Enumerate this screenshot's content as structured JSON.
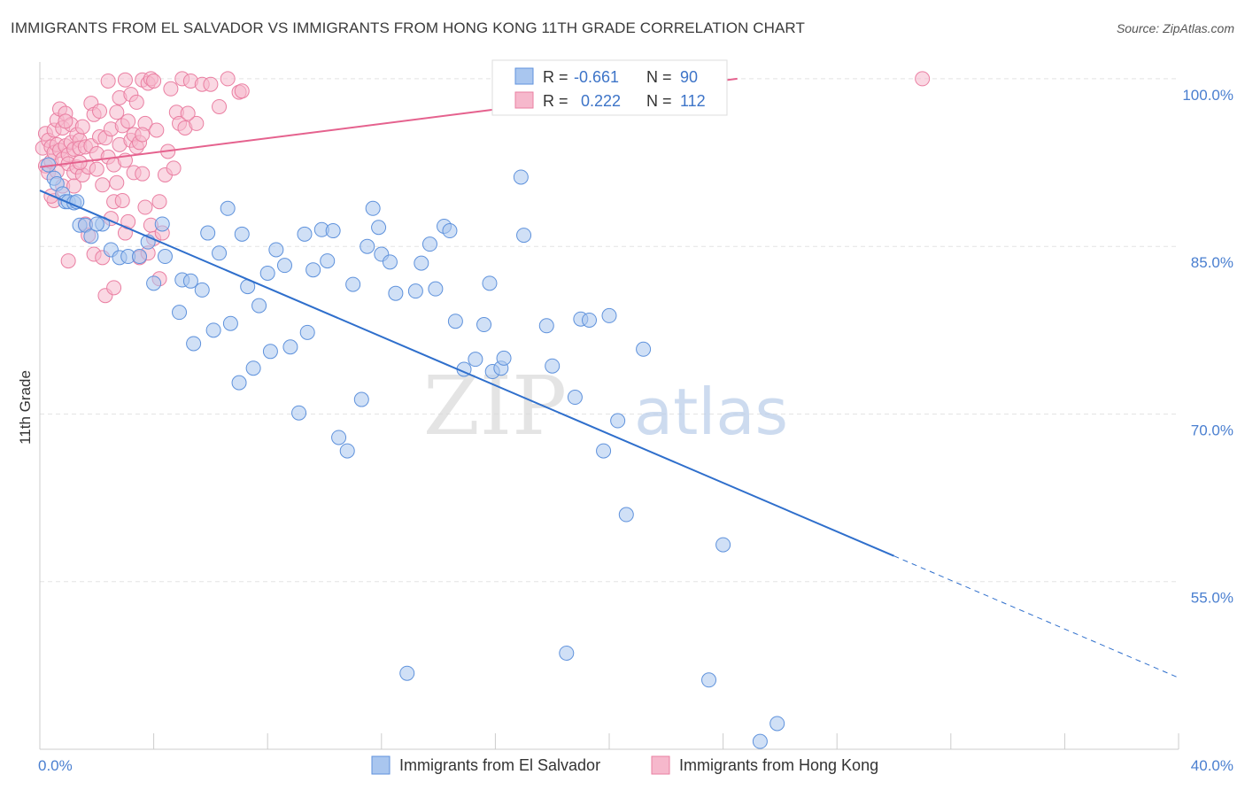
{
  "title": "IMMIGRANTS FROM EL SALVADOR VS IMMIGRANTS FROM HONG KONG 11TH GRADE CORRELATION CHART",
  "source": "Source: ZipAtlas.com",
  "watermark": {
    "zip": "ZIP",
    "atlas": "atlas"
  },
  "colors": {
    "blue_fill": "#a9c6ef",
    "blue_stroke": "#5f92dc",
    "blue_line": "#2f6fcc",
    "pink_fill": "#f6b8cc",
    "pink_stroke": "#ea7fa2",
    "pink_line": "#e5628e",
    "grid": "#e4e4e4",
    "tick_text": "#4a7fd0"
  },
  "legend": {
    "r_label": "R =",
    "n_label": "N =",
    "items": [
      {
        "r": "-0.661",
        "n": "90"
      },
      {
        "r": "0.222",
        "n": "112"
      }
    ]
  },
  "chart_data": {
    "type": "scatter",
    "title": "IMMIGRANTS FROM EL SALVADOR VS IMMIGRANTS FROM HONG KONG 11TH GRADE CORRELATION CHART",
    "xlabel": "",
    "ylabel": "11th Grade",
    "xlim": [
      0,
      40
    ],
    "ylim": [
      40,
      101.5
    ],
    "x_tick_labels": [
      "0.0%",
      "40.0%"
    ],
    "y_ticks": [
      55,
      70,
      85,
      100
    ],
    "y_tick_labels": [
      "55.0%",
      "70.0%",
      "85.0%",
      "100.0%"
    ],
    "grid": true,
    "legend_position": "top-center",
    "series": [
      {
        "name": "Immigrants from El Salvador",
        "r": -0.661,
        "n": 90,
        "trend": {
          "x0": 0,
          "y0": 90.0,
          "x1": 30.0,
          "y1": 57.3,
          "dash_to_x": 40.0,
          "dash_to_y": 46.4
        },
        "points": [
          [
            0.3,
            92.3
          ],
          [
            0.5,
            91.1
          ],
          [
            0.6,
            90.6
          ],
          [
            0.8,
            89.7
          ],
          [
            0.9,
            89.0
          ],
          [
            1.0,
            89.0
          ],
          [
            1.2,
            88.9
          ],
          [
            1.4,
            86.9
          ],
          [
            1.6,
            86.9
          ],
          [
            1.8,
            85.9
          ],
          [
            2.2,
            87.0
          ],
          [
            2.5,
            84.7
          ],
          [
            2.8,
            84.0
          ],
          [
            3.1,
            84.1
          ],
          [
            3.5,
            84.1
          ],
          [
            3.8,
            85.4
          ],
          [
            4.0,
            81.7
          ],
          [
            4.3,
            87.0
          ],
          [
            4.4,
            84.1
          ],
          [
            4.9,
            79.1
          ],
          [
            5.0,
            82.0
          ],
          [
            5.3,
            81.9
          ],
          [
            5.7,
            81.1
          ],
          [
            5.4,
            76.3
          ],
          [
            5.9,
            86.2
          ],
          [
            6.1,
            77.5
          ],
          [
            6.3,
            84.4
          ],
          [
            6.6,
            88.4
          ],
          [
            6.7,
            78.1
          ],
          [
            7.0,
            72.8
          ],
          [
            7.1,
            86.1
          ],
          [
            7.3,
            81.4
          ],
          [
            7.5,
            74.1
          ],
          [
            7.7,
            79.7
          ],
          [
            8.0,
            82.6
          ],
          [
            8.1,
            75.6
          ],
          [
            8.3,
            84.7
          ],
          [
            8.6,
            83.3
          ],
          [
            8.8,
            76.0
          ],
          [
            9.1,
            70.1
          ],
          [
            9.3,
            86.1
          ],
          [
            9.4,
            77.3
          ],
          [
            9.6,
            82.9
          ],
          [
            9.9,
            86.5
          ],
          [
            10.1,
            83.7
          ],
          [
            10.3,
            86.4
          ],
          [
            10.5,
            67.9
          ],
          [
            10.8,
            66.7
          ],
          [
            11.0,
            81.6
          ],
          [
            11.3,
            71.3
          ],
          [
            11.5,
            85.0
          ],
          [
            11.7,
            88.4
          ],
          [
            11.9,
            86.7
          ],
          [
            12.0,
            84.3
          ],
          [
            12.3,
            83.6
          ],
          [
            12.5,
            80.8
          ],
          [
            12.9,
            46.8
          ],
          [
            13.2,
            81.0
          ],
          [
            13.4,
            83.5
          ],
          [
            13.7,
            85.2
          ],
          [
            13.9,
            81.2
          ],
          [
            14.2,
            86.8
          ],
          [
            14.4,
            86.4
          ],
          [
            14.6,
            78.3
          ],
          [
            14.9,
            74.0
          ],
          [
            15.3,
            74.9
          ],
          [
            15.6,
            78.0
          ],
          [
            15.8,
            81.7
          ],
          [
            15.9,
            73.8
          ],
          [
            16.2,
            74.1
          ],
          [
            16.3,
            75.0
          ],
          [
            16.9,
            91.2
          ],
          [
            17.0,
            86.0
          ],
          [
            17.8,
            77.9
          ],
          [
            18.0,
            74.3
          ],
          [
            18.5,
            48.6
          ],
          [
            18.8,
            71.5
          ],
          [
            19.0,
            78.5
          ],
          [
            19.3,
            78.4
          ],
          [
            19.8,
            66.7
          ],
          [
            20.0,
            78.8
          ],
          [
            20.3,
            69.4
          ],
          [
            20.6,
            61.0
          ],
          [
            21.2,
            75.8
          ],
          [
            23.5,
            46.2
          ],
          [
            24.0,
            58.3
          ],
          [
            25.3,
            40.7
          ],
          [
            25.9,
            42.3
          ],
          [
            2.0,
            87.0
          ],
          [
            1.3,
            89.0
          ]
        ]
      },
      {
        "name": "Immigrants from Hong Kong",
        "r": 0.222,
        "n": 112,
        "trend": {
          "x0": 0,
          "y0": 92.1,
          "x1": 24.5,
          "y1": 100.0
        },
        "points": [
          [
            0.1,
            93.8
          ],
          [
            0.2,
            95.1
          ],
          [
            0.2,
            92.2
          ],
          [
            0.3,
            94.5
          ],
          [
            0.3,
            91.6
          ],
          [
            0.4,
            93.9
          ],
          [
            0.4,
            92.6
          ],
          [
            0.5,
            95.4
          ],
          [
            0.5,
            93.4
          ],
          [
            0.5,
            89.1
          ],
          [
            0.6,
            96.3
          ],
          [
            0.6,
            94.1
          ],
          [
            0.6,
            91.7
          ],
          [
            0.7,
            93.6
          ],
          [
            0.7,
            97.3
          ],
          [
            0.8,
            95.6
          ],
          [
            0.8,
            92.8
          ],
          [
            0.8,
            90.4
          ],
          [
            0.9,
            94.0
          ],
          [
            0.9,
            96.9
          ],
          [
            1.0,
            93.2
          ],
          [
            1.0,
            83.7
          ],
          [
            1.0,
            92.4
          ],
          [
            1.1,
            95.9
          ],
          [
            1.1,
            94.3
          ],
          [
            1.2,
            91.6
          ],
          [
            1.2,
            93.7
          ],
          [
            1.3,
            95.0
          ],
          [
            1.3,
            92.1
          ],
          [
            1.4,
            94.5
          ],
          [
            1.4,
            93.8
          ],
          [
            1.5,
            91.4
          ],
          [
            1.5,
            95.7
          ],
          [
            1.6,
            93.9
          ],
          [
            1.6,
            87.0
          ],
          [
            1.7,
            92.1
          ],
          [
            1.7,
            86.0
          ],
          [
            1.8,
            97.8
          ],
          [
            1.8,
            94.0
          ],
          [
            1.9,
            96.8
          ],
          [
            1.9,
            84.3
          ],
          [
            2.0,
            93.3
          ],
          [
            2.0,
            91.9
          ],
          [
            2.1,
            94.8
          ],
          [
            2.1,
            97.1
          ],
          [
            2.2,
            90.5
          ],
          [
            2.2,
            84.0
          ],
          [
            2.3,
            80.6
          ],
          [
            2.3,
            94.7
          ],
          [
            2.4,
            99.8
          ],
          [
            2.4,
            93.0
          ],
          [
            2.5,
            95.5
          ],
          [
            2.5,
            87.5
          ],
          [
            2.6,
            81.3
          ],
          [
            2.6,
            89.0
          ],
          [
            2.7,
            90.7
          ],
          [
            2.7,
            97.0
          ],
          [
            2.8,
            94.1
          ],
          [
            2.8,
            98.3
          ],
          [
            2.9,
            95.8
          ],
          [
            2.9,
            89.1
          ],
          [
            3.0,
            86.2
          ],
          [
            3.0,
            99.9
          ],
          [
            3.1,
            96.2
          ],
          [
            3.1,
            87.2
          ],
          [
            3.2,
            94.5
          ],
          [
            3.2,
            98.6
          ],
          [
            3.3,
            91.6
          ],
          [
            3.3,
            95.0
          ],
          [
            3.4,
            93.9
          ],
          [
            3.4,
            97.9
          ],
          [
            3.5,
            94.3
          ],
          [
            3.5,
            84.0
          ],
          [
            3.6,
            99.9
          ],
          [
            3.6,
            91.5
          ],
          [
            3.7,
            96.0
          ],
          [
            3.7,
            88.5
          ],
          [
            3.8,
            99.6
          ],
          [
            3.8,
            84.4
          ],
          [
            3.9,
            100.0
          ],
          [
            3.9,
            86.9
          ],
          [
            4.0,
            99.8
          ],
          [
            4.0,
            85.7
          ],
          [
            4.1,
            95.4
          ],
          [
            4.2,
            82.1
          ],
          [
            4.2,
            89.0
          ],
          [
            4.3,
            86.2
          ],
          [
            4.4,
            91.4
          ],
          [
            4.5,
            93.5
          ],
          [
            4.6,
            99.1
          ],
          [
            4.7,
            92.0
          ],
          [
            4.8,
            97.0
          ],
          [
            4.9,
            96.0
          ],
          [
            5.0,
            100.0
          ],
          [
            5.1,
            95.6
          ],
          [
            5.3,
            99.8
          ],
          [
            5.5,
            96.0
          ],
          [
            5.7,
            99.5
          ],
          [
            6.0,
            99.5
          ],
          [
            6.3,
            97.5
          ],
          [
            6.6,
            100.0
          ],
          [
            7.0,
            98.8
          ],
          [
            1.4,
            92.5
          ],
          [
            0.9,
            96.2
          ],
          [
            0.4,
            89.5
          ],
          [
            2.6,
            92.3
          ],
          [
            3.0,
            92.7
          ],
          [
            3.6,
            95.0
          ],
          [
            1.2,
            90.4
          ],
          [
            5.2,
            96.9
          ],
          [
            7.1,
            98.9
          ],
          [
            31.0,
            100.0
          ]
        ]
      }
    ]
  },
  "bottom_legend": [
    "Immigrants from El Salvador",
    "Immigrants from Hong Kong"
  ]
}
